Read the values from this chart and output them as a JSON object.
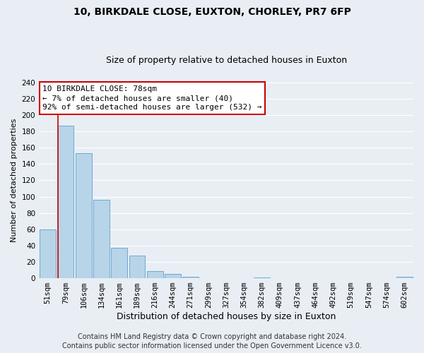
{
  "title": "10, BIRKDALE CLOSE, EUXTON, CHORLEY, PR7 6FP",
  "subtitle": "Size of property relative to detached houses in Euxton",
  "xlabel": "Distribution of detached houses by size in Euxton",
  "ylabel": "Number of detached properties",
  "bar_labels": [
    "51sqm",
    "79sqm",
    "106sqm",
    "134sqm",
    "161sqm",
    "189sqm",
    "216sqm",
    "244sqm",
    "271sqm",
    "299sqm",
    "327sqm",
    "354sqm",
    "382sqm",
    "409sqm",
    "437sqm",
    "464sqm",
    "492sqm",
    "519sqm",
    "547sqm",
    "574sqm",
    "602sqm"
  ],
  "bar_values": [
    60,
    187,
    153,
    96,
    37,
    28,
    9,
    5,
    2,
    0,
    0,
    0,
    1,
    0,
    0,
    0,
    0,
    0,
    0,
    0,
    2
  ],
  "bar_color": "#b8d4e8",
  "bar_edge_color": "#6aaad4",
  "vline_x": 0.575,
  "vline_color": "#cc0000",
  "ylim": [
    0,
    240
  ],
  "yticks": [
    0,
    20,
    40,
    60,
    80,
    100,
    120,
    140,
    160,
    180,
    200,
    220,
    240
  ],
  "annotation_title": "10 BIRKDALE CLOSE: 78sqm",
  "annotation_line1": "← 7% of detached houses are smaller (40)",
  "annotation_line2": "92% of semi-detached houses are larger (532) →",
  "annotation_box_color": "#ffffff",
  "annotation_box_edge_color": "#cc0000",
  "footer_line1": "Contains HM Land Registry data © Crown copyright and database right 2024.",
  "footer_line2": "Contains public sector information licensed under the Open Government Licence v3.0.",
  "bg_color": "#e8eef4",
  "grid_color": "#ffffff",
  "title_fontsize": 10,
  "subtitle_fontsize": 9,
  "xlabel_fontsize": 9,
  "ylabel_fontsize": 8,
  "tick_fontsize": 7.5,
  "footer_fontsize": 7
}
